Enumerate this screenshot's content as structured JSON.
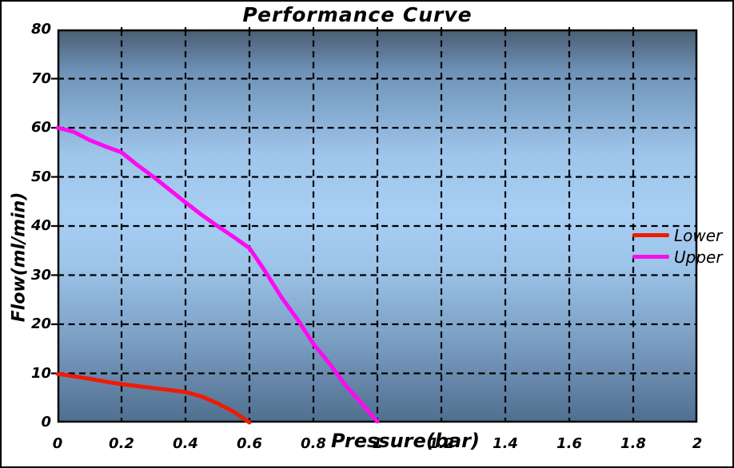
{
  "window": {
    "background": "#ffffff",
    "border_color": "#000000"
  },
  "chart_data": {
    "type": "line",
    "title": "Performance Curve",
    "xlabel": "Pressure(bar)",
    "ylabel": "Flow(ml/min)",
    "xlim": [
      0,
      2
    ],
    "ylim": [
      0,
      80
    ],
    "xticks": [
      0,
      0.2,
      0.4,
      0.6,
      0.8,
      1,
      1.2,
      1.4,
      1.6,
      1.8,
      2
    ],
    "xtick_labels": [
      "0",
      "0.2",
      "0.4",
      "0.6",
      "0.8",
      "1",
      "1.2",
      "1.4",
      "1.6",
      "1.8",
      "2"
    ],
    "yticks": [
      0,
      10,
      20,
      30,
      40,
      50,
      60,
      70,
      80
    ],
    "ytick_labels": [
      "0",
      "10",
      "20",
      "30",
      "40",
      "50",
      "60",
      "70",
      "80"
    ],
    "grid": {
      "shown": true,
      "style": "dashed",
      "color": "#000000"
    },
    "legend_position": "right edge, overlapping plot border",
    "plot_background_gradient": [
      [
        "#4a5e73",
        0
      ],
      [
        "#6f93b8",
        11
      ],
      [
        "#9ec5ea",
        32
      ],
      [
        "#a8cef3",
        47
      ],
      [
        "#9dc4e9",
        60
      ],
      [
        "#7da0c5",
        78
      ],
      [
        "#506f8f",
        100
      ]
    ],
    "series": [
      {
        "name": "Lower",
        "color": "#ee1b06",
        "points": [
          [
            0,
            9.9
          ],
          [
            0.05,
            9.4
          ],
          [
            0.1,
            8.9
          ],
          [
            0.15,
            8.3
          ],
          [
            0.2,
            7.8
          ],
          [
            0.25,
            7.4
          ],
          [
            0.3,
            7.0
          ],
          [
            0.35,
            6.6
          ],
          [
            0.4,
            6.2
          ],
          [
            0.45,
            5.3
          ],
          [
            0.5,
            3.9
          ],
          [
            0.55,
            2.2
          ],
          [
            0.6,
            0
          ]
        ]
      },
      {
        "name": "Upper",
        "color": "#fb0cf0",
        "points": [
          [
            0,
            60
          ],
          [
            0.05,
            59.2
          ],
          [
            0.1,
            57.5
          ],
          [
            0.15,
            56.2
          ],
          [
            0.2,
            55
          ],
          [
            0.25,
            52.4
          ],
          [
            0.3,
            50
          ],
          [
            0.35,
            47.4
          ],
          [
            0.4,
            44.8
          ],
          [
            0.45,
            42.3
          ],
          [
            0.5,
            40
          ],
          [
            0.55,
            37.8
          ],
          [
            0.6,
            35.5
          ],
          [
            0.65,
            30.7
          ],
          [
            0.7,
            25.5
          ],
          [
            0.75,
            21
          ],
          [
            0.8,
            16
          ],
          [
            0.85,
            12
          ],
          [
            0.9,
            7.6
          ],
          [
            0.95,
            3.9
          ],
          [
            1,
            0.2
          ]
        ]
      }
    ]
  }
}
